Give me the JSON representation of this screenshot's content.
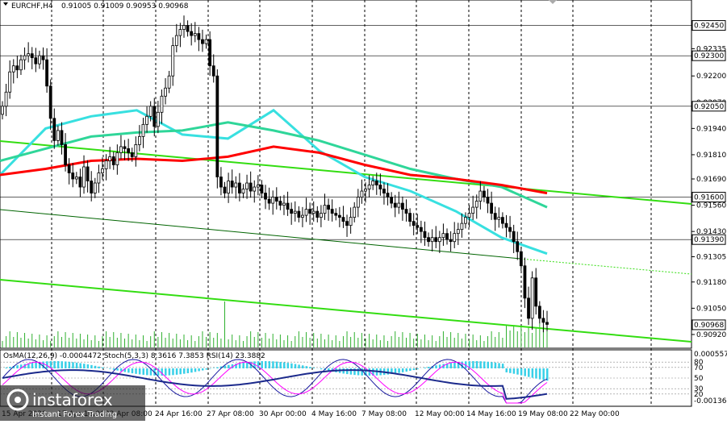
{
  "header": {
    "symbol_timeframe": "EURCHF,H4",
    "ohlc": "0.91005 0.91009 0.90953 0.90968"
  },
  "main_price_axis": {
    "ticks": [
      "0.92335",
      "0.92200",
      "0.92070",
      "0.91940",
      "0.91810",
      "0.91690",
      "0.91560",
      "0.91430",
      "0.91305",
      "0.91180",
      "0.91050",
      "0.90920"
    ],
    "boxed_levels": [
      "0.92450",
      "0.92300",
      "0.92050",
      "0.91600",
      "0.91390",
      "0.90968"
    ]
  },
  "time_axis": {
    "labels": [
      "15 Apr 2020",
      "17 Apr 16:00",
      "22 Apr 08:00",
      "24 Apr 16:00",
      "27 Apr 08:00",
      "30 Apr 00:00",
      "4 May 16:00",
      "7 May 08:00",
      "12 May 00:00",
      "14 May 16:00",
      "19 May 08:00",
      "22 May 00:00"
    ]
  },
  "subwindow": {
    "legend": "OsMA(12,26,9) -0.0004472  Stoch(5,3,3) 8.3616 7.3853  RSI(14) 23.3882",
    "axis_top": "0.0005574",
    "axis_bottom": "-0.0013664",
    "levels": [
      "80",
      "70",
      "50",
      "30",
      "20"
    ]
  },
  "watermark": {
    "brand": "instaforex",
    "tagline": "Instant Forex Trading"
  },
  "chart_data": {
    "type": "candlestick",
    "title": "EURCHF,H4",
    "ylim": [
      0.9086,
      0.9256
    ],
    "close_prices": [
      0.9205,
      0.9212,
      0.9222,
      0.9225,
      0.9223,
      0.9228,
      0.923,
      0.9231,
      0.9229,
      0.9226,
      0.923,
      0.9228,
      0.9215,
      0.9199,
      0.9188,
      0.9193,
      0.9186,
      0.9176,
      0.9172,
      0.9169,
      0.917,
      0.9165,
      0.9175,
      0.9168,
      0.9162,
      0.9167,
      0.9172,
      0.9174,
      0.9178,
      0.918,
      0.9176,
      0.9182,
      0.9185,
      0.9184,
      0.9182,
      0.918,
      0.9186,
      0.919,
      0.9196,
      0.92,
      0.9205,
      0.9195,
      0.9202,
      0.921,
      0.9214,
      0.922,
      0.9235,
      0.924,
      0.9243,
      0.9245,
      0.9242,
      0.924,
      0.9241,
      0.9238,
      0.9236,
      0.9238,
      0.9225,
      0.922,
      0.917,
      0.9165,
      0.9162,
      0.9168,
      0.9165,
      0.9167,
      0.9162,
      0.9164,
      0.9167,
      0.9163,
      0.9165,
      0.9166,
      0.9162,
      0.9159,
      0.9157,
      0.916,
      0.9158,
      0.9156,
      0.9157,
      0.9154,
      0.9152,
      0.9153,
      0.915,
      0.9151,
      0.9154,
      0.9152,
      0.9153,
      0.915,
      0.9152,
      0.9156,
      0.9154,
      0.9152,
      0.9151,
      0.915,
      0.9148,
      0.9146,
      0.915,
      0.9155,
      0.916,
      0.9163,
      0.9164,
      0.9166,
      0.9168,
      0.9166,
      0.9164,
      0.9162,
      0.916,
      0.9157,
      0.9155,
      0.9157,
      0.9154,
      0.9152,
      0.9148,
      0.9146,
      0.9145,
      0.9143,
      0.914,
      0.9138,
      0.914,
      0.9138,
      0.914,
      0.9142,
      0.9139,
      0.9138,
      0.9142,
      0.9144,
      0.9147,
      0.915,
      0.9152,
      0.9155,
      0.9158,
      0.9163,
      0.916,
      0.9157,
      0.9152,
      0.9149,
      0.915,
      0.9147,
      0.9145,
      0.9143,
      0.9138,
      0.9133,
      0.9126,
      0.911,
      0.91,
      0.912,
      0.9106,
      0.91,
      0.9098,
      0.9097
    ],
    "sma_cyan_200": "declining from 0.9185 to 0.9140",
    "series": [
      {
        "name": "",
        "color": "#ff0000",
        "values": [
          0.9171,
          0.9174,
          0.9178,
          0.9179,
          0.9178,
          0.918,
          0.9185,
          0.9182,
          0.9176,
          0.9171,
          0.9169,
          0.9166,
          0.9162
        ]
      },
      {
        "name": "",
        "color": "#2fd699",
        "values": [
          0.9178,
          0.9184,
          0.919,
          0.9192,
          0.9193,
          0.9197,
          0.9193,
          0.9188,
          0.9181,
          0.9174,
          0.9169,
          0.9165,
          0.9155
        ]
      },
      {
        "name": "",
        "color": "#38e0e0",
        "values": [
          0.9171,
          0.9194,
          0.92,
          0.9203,
          0.9191,
          0.9189,
          0.9203,
          0.9183,
          0.917,
          0.9163,
          0.9153,
          0.914,
          0.9132
        ]
      }
    ],
    "xlabel": "",
    "ylabel": ""
  },
  "colors": {
    "background": "#ffffff",
    "grid": "#000000",
    "candle": "#000000",
    "ma_red": "#ff0000",
    "ma_green": "#2fd699",
    "ma_cyan": "#38e0e0",
    "trend_green": "#33dd11",
    "trend_dark": "#006400",
    "osma": "#38d0e8",
    "stoch_main": "#1a1aa0",
    "stoch_signal": "#ff00ff",
    "rsi": "#1c2a8c"
  }
}
